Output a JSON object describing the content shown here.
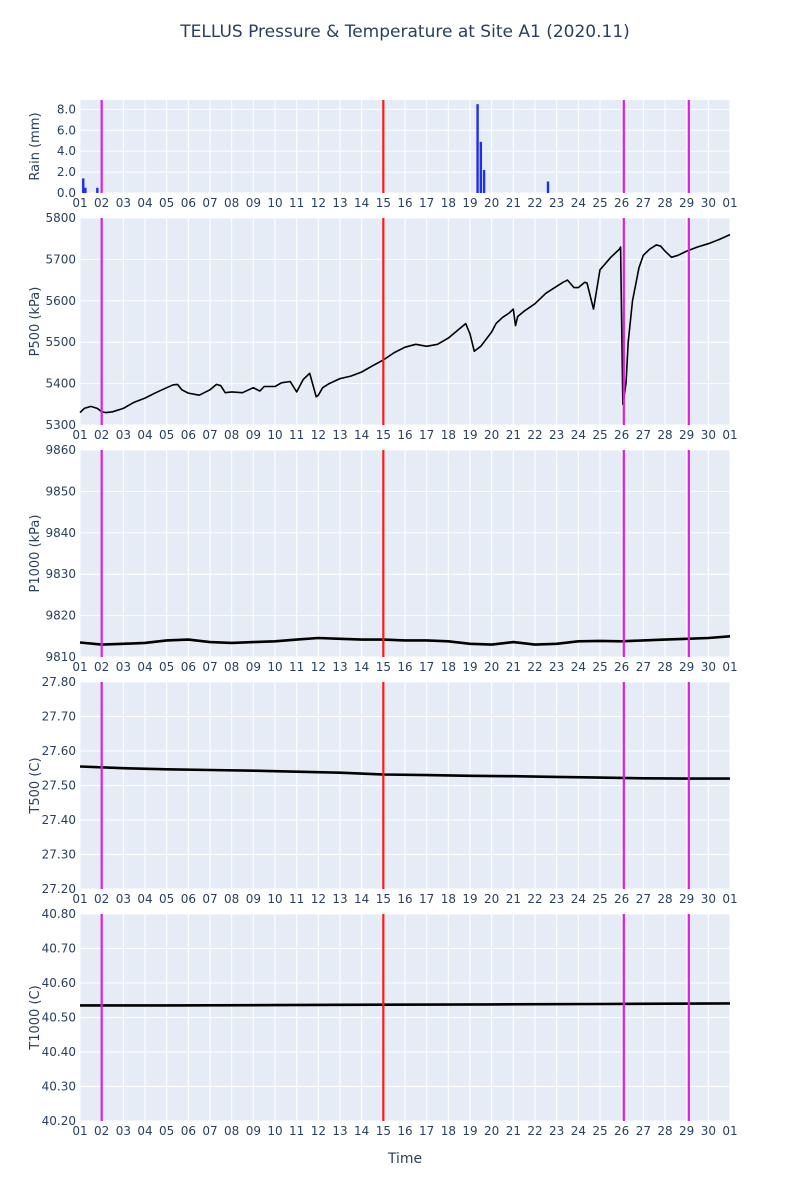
{
  "chart_data": {
    "title": "TELLUS Pressure & Temperature at Site A1 (2020.11)",
    "xlabel": "Time",
    "x_tick_labels": [
      "01",
      "02",
      "03",
      "04",
      "05",
      "06",
      "07",
      "08",
      "09",
      "10",
      "11",
      "12",
      "13",
      "14",
      "15",
      "16",
      "17",
      "18",
      "19",
      "20",
      "21",
      "22",
      "23",
      "24",
      "25",
      "26",
      "27",
      "28",
      "29",
      "30",
      "01"
    ],
    "x_range_days": [
      1,
      31
    ],
    "vlines": [
      {
        "day": 2.0,
        "color": "#e01ee0"
      },
      {
        "day": 15.0,
        "color": "#ff1a1a"
      },
      {
        "day": 26.1,
        "color": "#e01ee0"
      },
      {
        "day": 29.1,
        "color": "#e01ee0"
      }
    ],
    "panels": [
      {
        "id": "rain",
        "type": "bar",
        "ylabel": "Rain (mm)",
        "ylim": [
          0,
          8.9
        ],
        "y_ticks": [
          0,
          2,
          4,
          6,
          8
        ],
        "y_tick_labels": [
          "0.0",
          "2.0",
          "4.0",
          "6.0",
          "8.0"
        ],
        "color": "#1f2fe8",
        "x": [
          1.15,
          1.25,
          1.8,
          19.35,
          19.5,
          19.65,
          22.6
        ],
        "values": [
          1.4,
          0.5,
          0.5,
          8.5,
          4.9,
          2.2,
          1.1
        ]
      },
      {
        "id": "p500",
        "type": "line",
        "ylabel": "P500 (kPa)",
        "ylim": [
          5300,
          5800
        ],
        "y_ticks": [
          5300,
          5400,
          5500,
          5600,
          5700,
          5800
        ],
        "y_tick_labels": [
          "5300",
          "5400",
          "5500",
          "5600",
          "5700",
          "5800"
        ],
        "color": "#000000",
        "x": [
          1.0,
          1.2,
          1.5,
          1.8,
          2.0,
          2.2,
          2.5,
          3.0,
          3.5,
          4.0,
          4.5,
          5.0,
          5.3,
          5.5,
          5.7,
          6.0,
          6.5,
          7.0,
          7.3,
          7.5,
          7.7,
          8.0,
          8.5,
          9.0,
          9.3,
          9.5,
          10.0,
          10.3,
          10.7,
          11.0,
          11.3,
          11.6,
          11.9,
          12.0,
          12.2,
          12.5,
          13.0,
          13.5,
          14.0,
          14.5,
          15.0,
          15.5,
          16.0,
          16.5,
          17.0,
          17.5,
          18.0,
          18.5,
          18.8,
          19.0,
          19.2,
          19.5,
          20.0,
          20.2,
          20.5,
          20.8,
          21.0,
          21.1,
          21.2,
          21.5,
          22.0,
          22.5,
          23.0,
          23.3,
          23.5,
          23.8,
          24.0,
          24.3,
          24.4,
          24.7,
          25.0,
          25.5,
          25.9,
          25.95,
          26.05,
          26.2,
          26.3,
          26.5,
          26.8,
          27.0,
          27.3,
          27.6,
          27.8,
          28.0,
          28.3,
          28.6,
          29.0,
          29.5,
          30.0,
          30.5,
          31.0
        ],
        "values": [
          5330,
          5340,
          5345,
          5340,
          5332,
          5330,
          5332,
          5340,
          5355,
          5365,
          5378,
          5390,
          5397,
          5398,
          5385,
          5377,
          5372,
          5385,
          5398,
          5395,
          5378,
          5380,
          5378,
          5390,
          5382,
          5393,
          5393,
          5402,
          5405,
          5380,
          5410,
          5425,
          5368,
          5372,
          5390,
          5400,
          5412,
          5418,
          5428,
          5443,
          5457,
          5475,
          5488,
          5495,
          5490,
          5495,
          5510,
          5532,
          5545,
          5520,
          5478,
          5490,
          5525,
          5545,
          5560,
          5570,
          5580,
          5540,
          5562,
          5575,
          5593,
          5618,
          5635,
          5645,
          5650,
          5632,
          5632,
          5645,
          5643,
          5580,
          5675,
          5705,
          5725,
          5730,
          5350,
          5400,
          5500,
          5600,
          5680,
          5710,
          5725,
          5735,
          5732,
          5720,
          5705,
          5710,
          5720,
          5730,
          5738,
          5748,
          5760
        ]
      },
      {
        "id": "p1000",
        "type": "line",
        "ylabel": "P1000 (kPa)",
        "ylim": [
          9810,
          9860
        ],
        "y_ticks": [
          9810,
          9820,
          9830,
          9840,
          9850,
          9860
        ],
        "y_tick_labels": [
          "9810",
          "9820",
          "9830",
          "9840",
          "9850",
          "9860"
        ],
        "color": "#000000",
        "x": [
          1.0,
          2.0,
          3.0,
          4.0,
          5.0,
          6.0,
          7.0,
          8.0,
          9.0,
          10.0,
          11.0,
          12.0,
          13.0,
          14.0,
          15.0,
          16.0,
          17.0,
          18.0,
          19.0,
          20.0,
          21.0,
          22.0,
          23.0,
          24.0,
          25.0,
          26.0,
          27.0,
          28.0,
          29.0,
          30.0,
          31.0
        ],
        "values": [
          9813.5,
          9813.0,
          9813.2,
          9813.4,
          9814.0,
          9814.2,
          9813.6,
          9813.4,
          9813.6,
          9813.8,
          9814.2,
          9814.6,
          9814.4,
          9814.2,
          9814.2,
          9814.0,
          9814.0,
          9813.8,
          9813.2,
          9813.0,
          9813.6,
          9813.0,
          9813.2,
          9813.8,
          9813.9,
          9813.8,
          9814.0,
          9814.2,
          9814.4,
          9814.6,
          9815.0
        ]
      },
      {
        "id": "t500",
        "type": "line",
        "ylabel": "T500 (C)",
        "ylim": [
          27.2,
          27.8
        ],
        "y_ticks": [
          27.2,
          27.3,
          27.4,
          27.5,
          27.6,
          27.7,
          27.8
        ],
        "y_tick_labels": [
          "27.20",
          "27.30",
          "27.40",
          "27.50",
          "27.60",
          "27.70",
          "27.80"
        ],
        "color": "#000000",
        "x": [
          1.0,
          3.0,
          5.0,
          7.0,
          9.0,
          11.0,
          13.0,
          15.0,
          17.0,
          19.0,
          21.0,
          23.0,
          25.0,
          27.0,
          29.0,
          31.0
        ],
        "values": [
          27.555,
          27.55,
          27.547,
          27.545,
          27.543,
          27.54,
          27.537,
          27.532,
          27.53,
          27.528,
          27.527,
          27.525,
          27.523,
          27.521,
          27.52,
          27.52
        ]
      },
      {
        "id": "t1000",
        "type": "line",
        "ylabel": "T1000 (C)",
        "ylim": [
          40.2,
          40.8
        ],
        "y_ticks": [
          40.2,
          40.3,
          40.4,
          40.5,
          40.6,
          40.7,
          40.8
        ],
        "y_tick_labels": [
          "40.20",
          "40.30",
          "40.40",
          "40.50",
          "40.60",
          "40.70",
          "40.80"
        ],
        "color": "#000000",
        "x": [
          1.0,
          5.0,
          10.0,
          15.0,
          20.0,
          25.0,
          31.0
        ],
        "values": [
          40.535,
          40.535,
          40.536,
          40.537,
          40.538,
          40.539,
          40.541
        ]
      }
    ]
  }
}
